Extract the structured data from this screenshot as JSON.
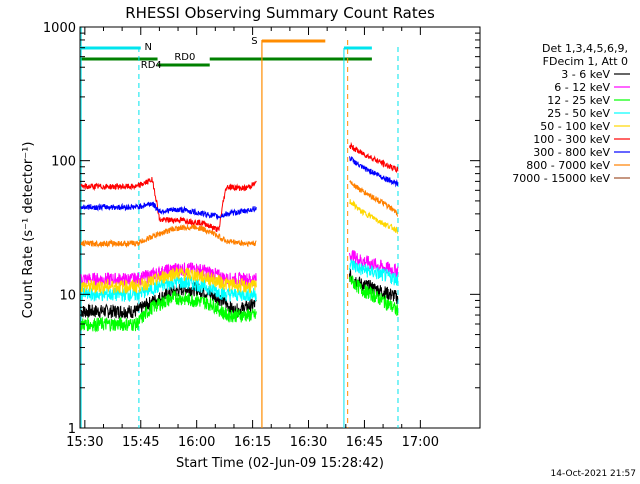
{
  "chart_data": {
    "type": "line",
    "title": "RHESSI Observing Summary Count Rates",
    "xlabel": "Start Time (02-Jun-09 15:28:42)",
    "ylabel": "Count Rate (s⁻¹ detector⁻¹)",
    "y_scale": "log",
    "ylim": [
      1,
      1000
    ],
    "xlim_minutes_from_1530": [
      -1.3,
      77
    ],
    "x_ticks": [
      {
        "t": 0,
        "label": "15:30"
      },
      {
        "t": 15,
        "label": "15:45"
      },
      {
        "t": 30,
        "label": "16:00"
      },
      {
        "t": 45,
        "label": "16:15"
      },
      {
        "t": 60,
        "label": "16:30"
      },
      {
        "t": 75,
        "label": "16:45"
      },
      {
        "t": 90,
        "label": "17:00"
      }
    ],
    "y_ticks": [
      {
        "v": 1,
        "label": "1"
      },
      {
        "v": 10,
        "label": "10"
      },
      {
        "v": 100,
        "label": "100"
      },
      {
        "v": 1000,
        "label": "1000"
      }
    ],
    "legend": {
      "position": "right",
      "header": [
        "Det 1,3,4,5,6,9,",
        "FDecim 1, Att 0"
      ]
    },
    "series": [
      {
        "name": "3 - 6 keV",
        "color": "#000000",
        "segments": [
          [
            [
              -1,
              7.5
            ],
            [
              14,
              7.5
            ],
            [
              17,
              8.5
            ],
            [
              22,
              10
            ],
            [
              26,
              11
            ],
            [
              30,
              11
            ],
            [
              34,
              10
            ],
            [
              37,
              9
            ],
            [
              40,
              7.5
            ],
            [
              43,
              8
            ],
            [
              46,
              8.5
            ]
          ],
          [
            [
              71,
              14
            ],
            [
              74,
              12
            ],
            [
              80,
              10.5
            ],
            [
              84,
              9.5
            ]
          ]
        ]
      },
      {
        "name": "6 - 12 keV",
        "color": "#ff00ff",
        "segments": [
          [
            [
              -1,
              13
            ],
            [
              14,
              13
            ],
            [
              18,
              14
            ],
            [
              24,
              15.5
            ],
            [
              30,
              15.5
            ],
            [
              34,
              14.5
            ],
            [
              38,
              13
            ],
            [
              43,
              13
            ],
            [
              46,
              13
            ]
          ],
          [
            [
              71,
              20
            ],
            [
              74,
              18
            ],
            [
              80,
              16
            ],
            [
              84,
              15
            ]
          ]
        ]
      },
      {
        "name": "12 - 25 keV",
        "color": "#00ff00",
        "segments": [
          [
            [
              -1,
              6
            ],
            [
              14,
              6
            ],
            [
              18,
              8
            ],
            [
              24,
              9.5
            ],
            [
              30,
              9
            ],
            [
              34,
              8.5
            ],
            [
              38,
              7
            ],
            [
              43,
              7
            ],
            [
              46,
              7
            ]
          ],
          [
            [
              71,
              13
            ],
            [
              74,
              11
            ],
            [
              80,
              9
            ],
            [
              84,
              7.5
            ]
          ]
        ]
      },
      {
        "name": "25 - 50 keV",
        "color": "#00ffff",
        "segments": [
          [
            [
              -1,
              10
            ],
            [
              14,
              10
            ],
            [
              18,
              11
            ],
            [
              24,
              12.5
            ],
            [
              30,
              12
            ],
            [
              34,
              11
            ],
            [
              38,
              10
            ],
            [
              43,
              10
            ],
            [
              46,
              10
            ]
          ],
          [
            [
              71,
              17
            ],
            [
              74,
              15.5
            ],
            [
              80,
              14
            ],
            [
              84,
              13
            ]
          ]
        ]
      },
      {
        "name": "50 - 100 keV",
        "color": "#ffd700",
        "segments": [
          [
            [
              -1,
              11.5
            ],
            [
              14,
              11.5
            ],
            [
              18,
              12.5
            ],
            [
              24,
              14.5
            ],
            [
              30,
              14
            ],
            [
              34,
              13
            ],
            [
              38,
              12
            ],
            [
              43,
              11.5
            ],
            [
              46,
              11.5
            ]
          ],
          [
            [
              71,
              50
            ],
            [
              74,
              42
            ],
            [
              80,
              34
            ],
            [
              84,
              30
            ]
          ]
        ]
      },
      {
        "name": "100 - 300 keV",
        "color": "#ff0000",
        "segments": [
          [
            [
              -1,
              64
            ],
            [
              14,
              64
            ],
            [
              18,
              72
            ],
            [
              20,
              36
            ],
            [
              26,
              36
            ],
            [
              32,
              34
            ],
            [
              36,
              30
            ],
            [
              38,
              64
            ],
            [
              43,
              62
            ],
            [
              46,
              68
            ]
          ],
          [
            [
              71,
              130
            ],
            [
              74,
              115
            ],
            [
              80,
              95
            ],
            [
              84,
              85
            ]
          ]
        ]
      },
      {
        "name": "300 - 800 keV",
        "color": "#0000ff",
        "segments": [
          [
            [
              -1,
              45
            ],
            [
              14,
              45
            ],
            [
              18,
              48
            ],
            [
              20,
              42
            ],
            [
              26,
              43
            ],
            [
              32,
              40
            ],
            [
              36,
              38
            ],
            [
              38,
              40
            ],
            [
              43,
              42
            ],
            [
              46,
              44
            ]
          ],
          [
            [
              71,
              105
            ],
            [
              74,
              90
            ],
            [
              80,
              75
            ],
            [
              84,
              67
            ]
          ]
        ]
      },
      {
        "name": "800 - 7000 keV",
        "color": "#ff8000",
        "segments": [
          [
            [
              -1,
              24
            ],
            [
              14,
              24
            ],
            [
              18,
              27
            ],
            [
              24,
              31
            ],
            [
              30,
              32
            ],
            [
              34,
              29
            ],
            [
              38,
              25
            ],
            [
              43,
              24
            ],
            [
              46,
              24
            ]
          ],
          [
            [
              71,
              70
            ],
            [
              74,
              60
            ],
            [
              80,
              48
            ],
            [
              84,
              40
            ]
          ]
        ]
      },
      {
        "name": "7000 - 15000 keV",
        "color": "#a0522d",
        "segments": []
      }
    ],
    "annotations": {
      "saa_label": "S",
      "night_label": "N",
      "rd0_label": "RD0",
      "rd4_label": "RD4"
    }
  },
  "timestamp": "14-Oct-2021 21:57"
}
